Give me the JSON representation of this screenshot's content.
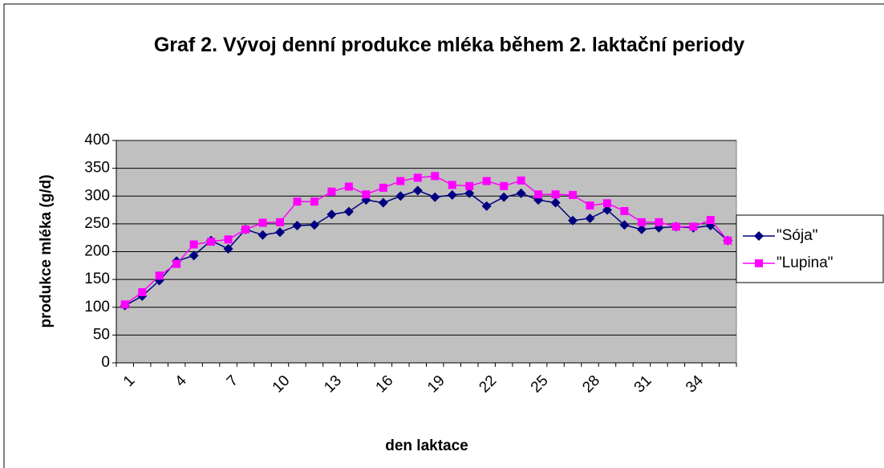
{
  "chart_data": {
    "type": "line",
    "title": "Graf 2. Vývoj denní produkce mléka během 2. laktační periody",
    "x_label": "den laktace",
    "y_label": "produkce mléka (g/d)",
    "categories": [
      "1",
      null,
      null,
      "4",
      null,
      null,
      "7",
      null,
      null,
      "10",
      null,
      null,
      "13",
      null,
      null,
      "16",
      null,
      null,
      "19",
      null,
      null,
      "22",
      null,
      null,
      "25",
      null,
      null,
      "28",
      null,
      null,
      "31",
      null,
      null,
      "34",
      null,
      null
    ],
    "series": [
      {
        "name": "\"Sója\"",
        "color": "#000080",
        "marker": "diamond",
        "values": [
          103,
          120,
          148,
          183,
          193,
          220,
          205,
          240,
          230,
          235,
          247,
          248,
          267,
          272,
          293,
          288,
          300,
          310,
          298,
          302,
          305,
          282,
          298,
          305,
          293,
          288,
          256,
          260,
          275,
          248,
          240,
          243,
          245,
          243,
          247,
          220
        ]
      },
      {
        "name": "\"Lupina\"",
        "color": "#ff00ff",
        "marker": "square",
        "values": [
          105,
          127,
          157,
          178,
          213,
          218,
          222,
          240,
          252,
          253,
          290,
          290,
          308,
          317,
          303,
          315,
          327,
          333,
          336,
          320,
          318,
          327,
          318,
          328,
          303,
          303,
          302,
          283,
          287,
          273,
          253,
          253,
          245,
          245,
          257,
          220
        ]
      }
    ],
    "ylim": [
      0,
      400
    ],
    "yticks": [
      0,
      50,
      100,
      150,
      200,
      250,
      300,
      350,
      400
    ],
    "grid": true,
    "legend": "right",
    "plot_background": "#c0c0c0"
  }
}
